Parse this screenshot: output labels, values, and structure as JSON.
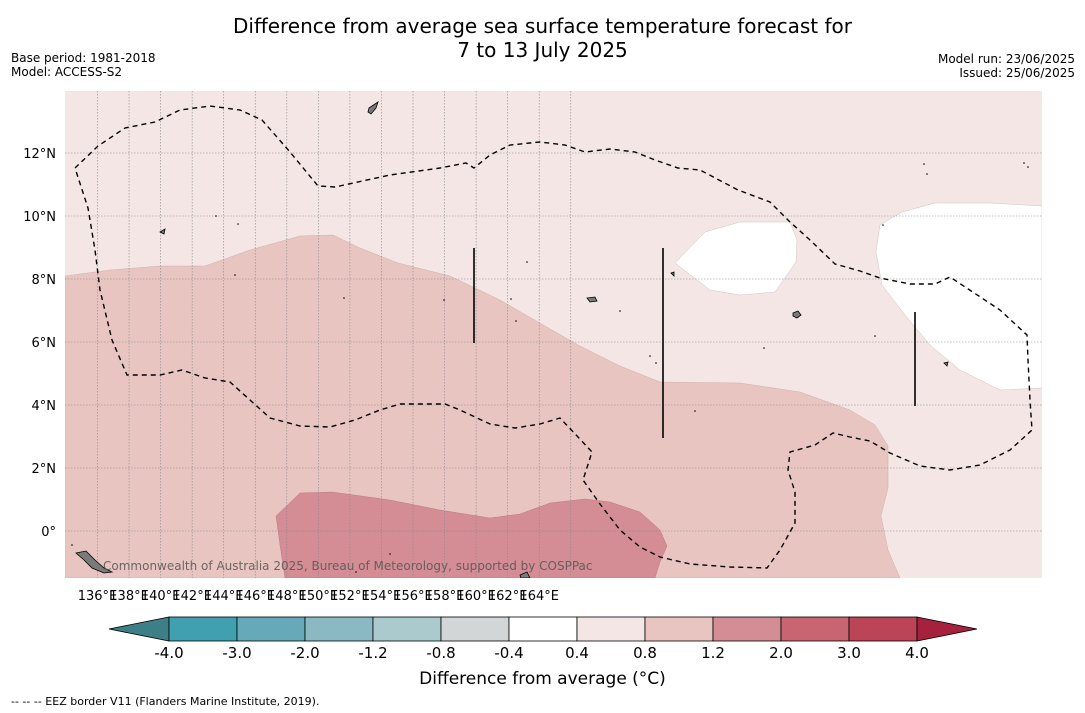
{
  "title": {
    "line1": "Difference from average sea surface temperature forecast for",
    "line2": "7 to 13 July 2025"
  },
  "meta": {
    "base_period": "Base period: 1981-2018",
    "model": "Model: ACCESS-S2",
    "model_run": "Model run: 23/06/2025",
    "issued": "Issued: 25/06/2025"
  },
  "map": {
    "lon_ticks": [
      "136°E",
      "138°E",
      "140°E",
      "142°E",
      "144°E",
      "146°E",
      "148°E",
      "150°E",
      "152°E",
      "154°E",
      "156°E",
      "158°E",
      "160°E",
      "162°E",
      "164°E"
    ],
    "lat_ticks": [
      "12°N",
      "10°N",
      "8°N",
      "6°N",
      "4°N",
      "2°N",
      "0°"
    ],
    "copyright": "Commonwealth of Australia 2025, Bureau of Meteorology, supported by COSPPac",
    "colors": {
      "0.4_0.8": "#f3e6e4",
      "0.8_1.2": "#e8c5c0",
      "1.2_2.0": "#d48d94",
      "-0.4_0.4": "#ffffff"
    }
  },
  "colorbar": {
    "title": "Difference from average (°C)",
    "labels": [
      "-4.0",
      "-3.0",
      "-2.0",
      "-1.2",
      "-0.8",
      "-0.4",
      "0.4",
      "0.8",
      "1.2",
      "2.0",
      "3.0",
      "4.0"
    ],
    "colors": [
      "#40a0b0",
      "#66a9b9",
      "#8ab8c3",
      "#aacacd",
      "#d3d6d6",
      "#ffffff",
      "#f3e6e4",
      "#e8c5c0",
      "#d48d94",
      "#c96570",
      "#bb4456"
    ],
    "low_extend": "#3d7f86",
    "high_extend": "#a5213d"
  },
  "footnote": "-- -- -- EEZ border V11 (Flanders Marine Institute, 2019)."
}
